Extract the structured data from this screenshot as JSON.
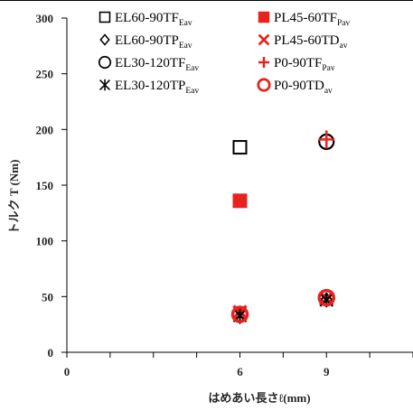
{
  "chart_data": {
    "type": "scatter",
    "xlabel": "はめあい長さℓ(mm)",
    "ylabel": "トルク T (Nm)",
    "xlim": [
      0,
      12
    ],
    "ylim": [
      0,
      300
    ],
    "x_ticks": [
      0,
      6,
      9
    ],
    "x_minor_ticks": [
      1.5,
      3,
      4.5,
      7.5,
      10.5,
      12
    ],
    "y_ticks": [
      0,
      50,
      100,
      150,
      200,
      250,
      300
    ],
    "grid": false,
    "legend_position": "top, two columns",
    "series": [
      {
        "name": "EL60-90TF",
        "subscript": "Eav",
        "marker": "open-square",
        "color": "#000000",
        "points": [
          {
            "x": 6,
            "y": 184
          }
        ]
      },
      {
        "name": "PL45-60TF",
        "subscript": "Pav",
        "marker": "filled-square",
        "color": "#e8231f",
        "points": [
          {
            "x": 6,
            "y": 136
          }
        ]
      },
      {
        "name": "EL60-90TP",
        "subscript": "Eav",
        "marker": "open-diamond",
        "color": "#000000",
        "points": [
          {
            "x": 6,
            "y": 32
          },
          {
            "x": 9,
            "y": 47
          }
        ]
      },
      {
        "name": "PL45-60TD",
        "subscript": "av",
        "marker": "x-cross",
        "color": "#e8231f",
        "points": [
          {
            "x": 6,
            "y": 36
          },
          {
            "x": 9,
            "y": 48
          }
        ]
      },
      {
        "name": "EL30-120TF",
        "subscript": "Eav",
        "marker": "open-circle",
        "color": "#000000",
        "points": [
          {
            "x": 9,
            "y": 189
          }
        ]
      },
      {
        "name": "P0-90TF",
        "subscript": "Pav",
        "marker": "plus",
        "color": "#e8231f",
        "points": [
          {
            "x": 9,
            "y": 191
          }
        ]
      },
      {
        "name": "EL30-120TP",
        "subscript": "Eav",
        "marker": "asterisk",
        "color": "#000000",
        "points": [
          {
            "x": 6,
            "y": 33
          },
          {
            "x": 9,
            "y": 47
          }
        ]
      },
      {
        "name": "P0-90TD",
        "subscript": "av",
        "marker": "open-circle-thick",
        "color": "#e8231f",
        "points": [
          {
            "x": 6,
            "y": 34
          },
          {
            "x": 9,
            "y": 49
          }
        ]
      }
    ]
  }
}
